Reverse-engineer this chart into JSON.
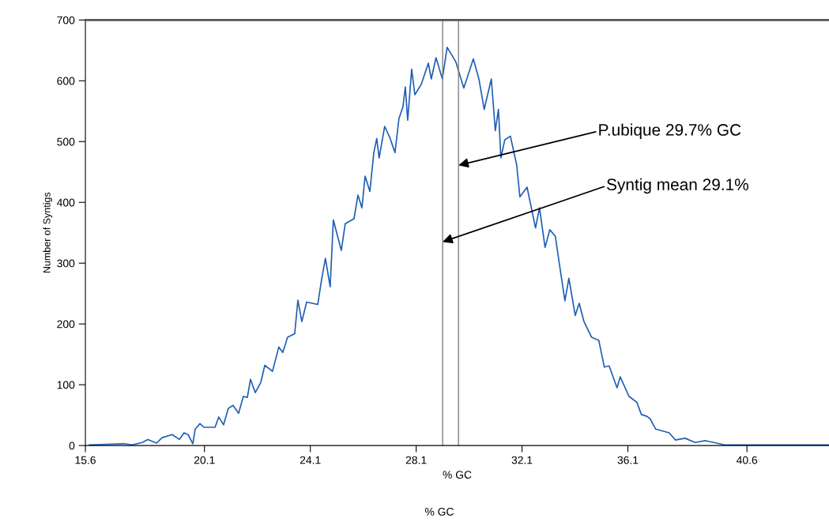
{
  "chart_data": {
    "type": "line",
    "xlabel": "% GC",
    "ylabel": "Number of Syntigs",
    "x": [
      15.75,
      17.06,
      17.36,
      17.75,
      17.96,
      18.29,
      18.5,
      18.88,
      19.15,
      19.33,
      19.48,
      19.66,
      19.75,
      19.93,
      20.08,
      20.5,
      20.64,
      20.82,
      21.0,
      21.18,
      21.39,
      21.57,
      21.72,
      21.84,
      22.02,
      22.23,
      22.38,
      22.67,
      22.91,
      23.06,
      23.24,
      23.51,
      23.63,
      23.78,
      23.96,
      24.38,
      24.53,
      24.67,
      24.85,
      24.97,
      25.27,
      25.42,
      25.75,
      25.9,
      26.05,
      26.17,
      26.35,
      26.5,
      26.61,
      26.7,
      26.91,
      27.09,
      27.3,
      27.45,
      27.6,
      27.69,
      27.78,
      27.93,
      28.05,
      28.29,
      28.56,
      28.67,
      28.85,
      29.09,
      29.27,
      29.6,
      29.9,
      30.26,
      30.47,
      30.67,
      30.94,
      31.09,
      31.21,
      31.3,
      31.45,
      31.66,
      31.9,
      32.02,
      32.29,
      32.61,
      32.76,
      32.97,
      33.15,
      33.36,
      33.51,
      33.72,
      33.87,
      34.11,
      34.26,
      34.44,
      34.73,
      35.0,
      35.21,
      35.39,
      35.69,
      35.81,
      36.14,
      36.44,
      36.61,
      36.82,
      36.94,
      37.15,
      37.66,
      37.9,
      38.26,
      38.64,
      39.03,
      39.45,
      39.75,
      43.69
    ],
    "series": [
      {
        "color": "#1f5fb4",
        "values": [
          1,
          3,
          1,
          5,
          10,
          4,
          13,
          18,
          10,
          21,
          18,
          3,
          27,
          36,
          30,
          30,
          47,
          34,
          61,
          66,
          53,
          81,
          79,
          109,
          87,
          104,
          132,
          122,
          162,
          153,
          178,
          184,
          239,
          204,
          236,
          232,
          274,
          308,
          261,
          371,
          321,
          365,
          373,
          412,
          391,
          443,
          418,
          482,
          505,
          473,
          525,
          508,
          482,
          538,
          557,
          590,
          535,
          619,
          577,
          594,
          629,
          603,
          638,
          603,
          655,
          631,
          588,
          636,
          603,
          553,
          603,
          518,
          553,
          473,
          503,
          509,
          461,
          409,
          425,
          358,
          391,
          326,
          355,
          344,
          299,
          238,
          275,
          214,
          234,
          204,
          178,
          173,
          129,
          131,
          95,
          113,
          81,
          71,
          51,
          48,
          44,
          27,
          21,
          9,
          12,
          5,
          8,
          4,
          1,
          1
        ]
      }
    ],
    "xlim": [
      15.6,
      43.7
    ],
    "xticks": [
      15.6,
      20.1,
      24.1,
      28.1,
      32.1,
      36.1,
      40.6
    ],
    "ylim": [
      0,
      700
    ],
    "yticks": [
      0,
      100,
      200,
      300,
      400,
      500,
      600,
      700
    ],
    "grid": false,
    "legend": false,
    "marker": "none",
    "line_style": "solid",
    "ref_lines": [
      {
        "axis": "x",
        "value": 29.1,
        "color": "#808080"
      },
      {
        "axis": "x",
        "value": 29.7,
        "color": "#808080"
      }
    ],
    "annotations": [
      {
        "text": "P.ubique 29.7% GC",
        "x": 29.7,
        "y": 461
      },
      {
        "text": "Syntig mean 29.1%",
        "x": 29.1,
        "y": 335
      },
      "% GC"
    ]
  }
}
